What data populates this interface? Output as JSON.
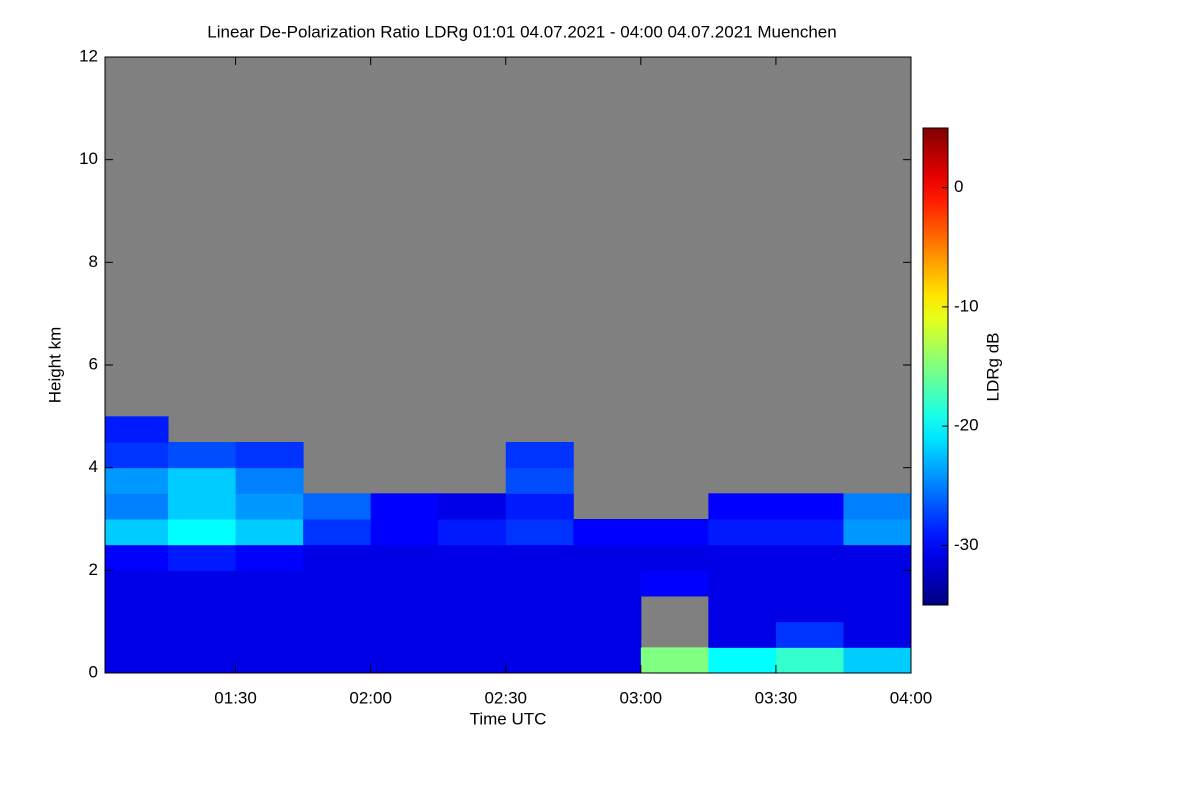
{
  "chart_data": {
    "type": "heatmap",
    "title": "Linear De-Polarization Ratio LDRg   01:01 04.07.2021 - 04:00 04.07.2021 Muenchen",
    "xlabel": "Time UTC",
    "ylabel": "Height km",
    "colorbar_label": "LDRg dB",
    "xlim": [
      1.0167,
      4.0
    ],
    "xticks": [
      {
        "value": 1.5,
        "label": "01:30"
      },
      {
        "value": 2.0,
        "label": "02:00"
      },
      {
        "value": 2.5,
        "label": "02:30"
      },
      {
        "value": 3.0,
        "label": "03:00"
      },
      {
        "value": 3.5,
        "label": "03:30"
      },
      {
        "value": 4.0,
        "label": "04:00"
      }
    ],
    "ylim": [
      0,
      12
    ],
    "yticks": [
      0,
      2,
      4,
      6,
      8,
      10,
      12
    ],
    "zlim": [
      -35,
      5
    ],
    "zticks": [
      0,
      -10,
      -20,
      -30
    ],
    "colormap": "jet",
    "missing_color": "#808080",
    "x_edges": [
      1.0167,
      1.25,
      1.5,
      1.75,
      2.0,
      2.25,
      2.5,
      2.75,
      3.0,
      3.25,
      3.5,
      3.75,
      4.0
    ],
    "y_edges": [
      0,
      0.5,
      1,
      1.5,
      2,
      2.5,
      3,
      3.5,
      4,
      4.5,
      5
    ],
    "z": [
      [
        -31,
        -31,
        -31,
        -31,
        -31,
        -31,
        -31,
        -31,
        -15,
        -20,
        -18,
        -22
      ],
      [
        -31,
        -31,
        -31,
        -31,
        -31,
        -31,
        -31,
        -31,
        null,
        -31,
        -28,
        -31
      ],
      [
        -31,
        -31,
        -31,
        -31,
        -31,
        -31,
        -31,
        -31,
        null,
        -31,
        -31,
        -31
      ],
      [
        -31,
        -31,
        -31,
        -31,
        -31,
        -31,
        -31,
        -31,
        -30,
        -31,
        -31,
        -31
      ],
      [
        -30,
        -29,
        -30,
        -31,
        -31,
        -31,
        -31,
        -31,
        -31,
        -31,
        -31,
        -31
      ],
      [
        -22,
        -20,
        -22,
        -28,
        -30,
        -29,
        -28,
        -30,
        -30,
        -29,
        -29,
        -24
      ],
      [
        -25,
        -22,
        -24,
        -26,
        -30,
        -31,
        -29,
        null,
        null,
        -30,
        -30,
        -25
      ],
      [
        -24,
        -22,
        -25,
        null,
        null,
        null,
        -27,
        null,
        null,
        null,
        null,
        null
      ],
      [
        -28,
        -27,
        -28,
        null,
        null,
        null,
        -28,
        null,
        null,
        null,
        null,
        null
      ],
      [
        -29,
        null,
        null,
        null,
        null,
        null,
        null,
        null,
        null,
        null,
        null,
        null
      ]
    ]
  }
}
